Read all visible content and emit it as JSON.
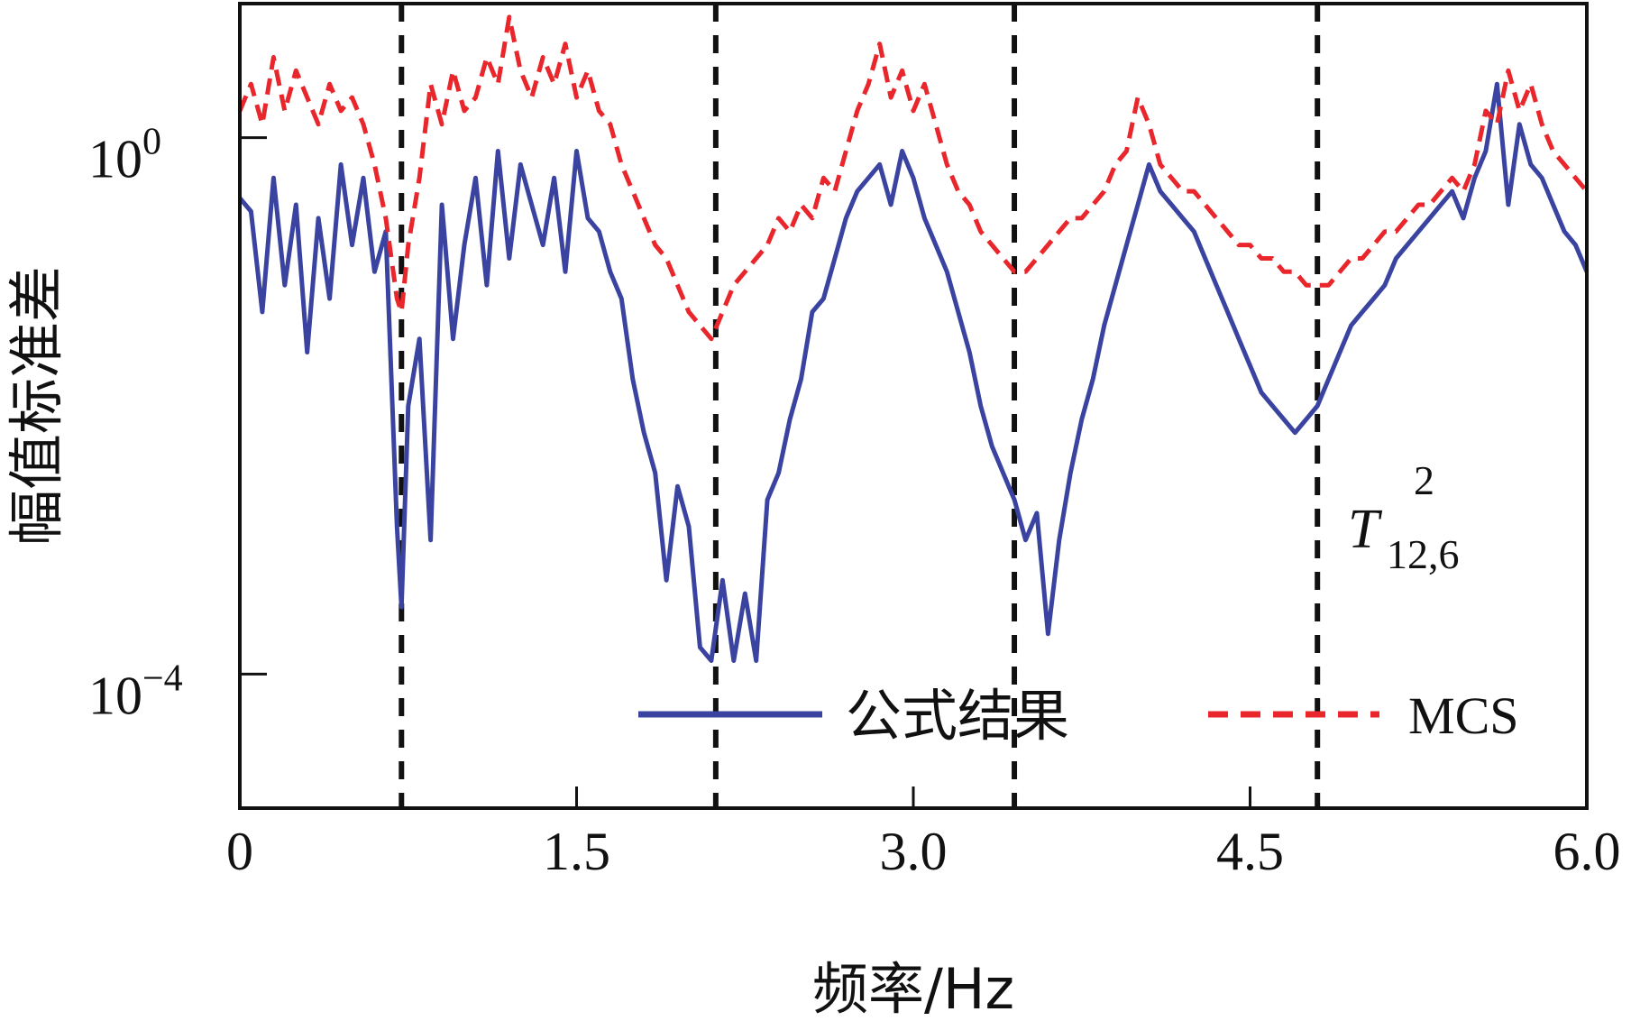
{
  "chart_data": {
    "type": "line",
    "title": "",
    "xlabel": "频率/Hz",
    "ylabel": "幅值标准差",
    "yscale": "log",
    "xlim": [
      0,
      6.0
    ],
    "ylim_exponent": [
      -5.0,
      1.0
    ],
    "x_ticks": [
      0,
      1.5,
      3.0,
      4.5,
      6.0
    ],
    "x_tick_labels": [
      "0",
      "1.5",
      "3.0",
      "4.5",
      "6.0"
    ],
    "y_ticks": [
      {
        "base": "10",
        "exp": "0",
        "value": 1
      },
      {
        "base": "10",
        "exp": "−4",
        "value": 0.0001
      }
    ],
    "annotation": {
      "main": "T",
      "sup": "2",
      "sub": "12,6"
    },
    "legend": {
      "position": "bottom-right"
    },
    "vertical_lines_x": [
      0.72,
      2.12,
      3.45,
      4.8
    ],
    "colors": {
      "formula": "#3a44a0",
      "mcs": "#e8262b",
      "vline": "#111111"
    },
    "series": [
      {
        "name": "公式结果",
        "style": "solid",
        "x": [
          0,
          0.05,
          0.1,
          0.15,
          0.2,
          0.25,
          0.3,
          0.35,
          0.4,
          0.45,
          0.5,
          0.55,
          0.6,
          0.65,
          0.7,
          0.72,
          0.75,
          0.8,
          0.85,
          0.9,
          0.95,
          1.0,
          1.05,
          1.1,
          1.15,
          1.2,
          1.25,
          1.3,
          1.35,
          1.4,
          1.45,
          1.5,
          1.55,
          1.6,
          1.65,
          1.7,
          1.75,
          1.8,
          1.85,
          1.9,
          1.95,
          2.0,
          2.05,
          2.1,
          2.15,
          2.2,
          2.25,
          2.3,
          2.35,
          2.4,
          2.45,
          2.5,
          2.55,
          2.6,
          2.65,
          2.7,
          2.75,
          2.8,
          2.85,
          2.9,
          2.95,
          3.0,
          3.05,
          3.1,
          3.15,
          3.2,
          3.25,
          3.3,
          3.35,
          3.4,
          3.45,
          3.5,
          3.55,
          3.6,
          3.65,
          3.7,
          3.75,
          3.8,
          3.85,
          3.9,
          3.95,
          4.0,
          4.05,
          4.1,
          4.15,
          4.2,
          4.25,
          4.3,
          4.35,
          4.4,
          4.45,
          4.5,
          4.55,
          4.6,
          4.65,
          4.7,
          4.75,
          4.8,
          4.85,
          4.9,
          4.95,
          5.0,
          5.05,
          5.1,
          5.15,
          5.2,
          5.25,
          5.3,
          5.35,
          5.4,
          5.45,
          5.5,
          5.55,
          5.6,
          5.65,
          5.7,
          5.75,
          5.8,
          5.85,
          5.9,
          5.95,
          6.0
        ],
        "log10_y": [
          -0.45,
          -0.55,
          -1.3,
          -0.3,
          -1.1,
          -0.5,
          -1.6,
          -0.6,
          -1.2,
          -0.2,
          -0.8,
          -0.3,
          -1.0,
          -0.7,
          -2.9,
          -3.5,
          -2.0,
          -1.5,
          -3.0,
          -0.5,
          -1.5,
          -0.8,
          -0.3,
          -1.1,
          -0.1,
          -0.9,
          -0.2,
          -0.5,
          -0.8,
          -0.3,
          -1.0,
          -0.1,
          -0.6,
          -0.7,
          -1.0,
          -1.2,
          -1.8,
          -2.2,
          -2.5,
          -3.3,
          -2.6,
          -2.9,
          -3.8,
          -3.9,
          -3.3,
          -3.9,
          -3.4,
          -3.9,
          -2.7,
          -2.5,
          -2.1,
          -1.8,
          -1.3,
          -1.2,
          -0.9,
          -0.6,
          -0.4,
          -0.3,
          -0.2,
          -0.5,
          -0.1,
          -0.3,
          -0.6,
          -0.8,
          -1.0,
          -1.3,
          -1.6,
          -2.0,
          -2.3,
          -2.5,
          -2.7,
          -3.0,
          -2.8,
          -3.7,
          -3.0,
          -2.5,
          -2.1,
          -1.8,
          -1.4,
          -1.1,
          -0.8,
          -0.5,
          -0.2,
          -0.4,
          -0.5,
          -0.6,
          -0.7,
          -0.9,
          -1.1,
          -1.3,
          -1.5,
          -1.7,
          -1.9,
          -2.0,
          -2.1,
          -2.2,
          -2.1,
          -2.0,
          -1.8,
          -1.6,
          -1.4,
          -1.3,
          -1.2,
          -1.1,
          -0.9,
          -0.8,
          -0.7,
          -0.6,
          -0.5,
          -0.4,
          -0.6,
          -0.3,
          -0.1,
          0.4,
          -0.5,
          0.1,
          -0.2,
          -0.3,
          -0.5,
          -0.7,
          -0.8,
          -1.0
        ]
      },
      {
        "name": "MCS",
        "style": "dashed",
        "x": [
          0,
          0.05,
          0.1,
          0.15,
          0.2,
          0.25,
          0.3,
          0.35,
          0.4,
          0.45,
          0.5,
          0.55,
          0.6,
          0.65,
          0.7,
          0.72,
          0.75,
          0.8,
          0.85,
          0.9,
          0.95,
          1.0,
          1.05,
          1.1,
          1.15,
          1.2,
          1.25,
          1.3,
          1.35,
          1.4,
          1.45,
          1.5,
          1.55,
          1.6,
          1.65,
          1.7,
          1.75,
          1.8,
          1.85,
          1.9,
          1.95,
          2.0,
          2.05,
          2.1,
          2.15,
          2.2,
          2.25,
          2.3,
          2.35,
          2.4,
          2.45,
          2.5,
          2.55,
          2.6,
          2.65,
          2.7,
          2.75,
          2.8,
          2.85,
          2.9,
          2.95,
          3.0,
          3.05,
          3.1,
          3.15,
          3.2,
          3.25,
          3.3,
          3.35,
          3.4,
          3.45,
          3.5,
          3.55,
          3.6,
          3.65,
          3.7,
          3.75,
          3.8,
          3.85,
          3.9,
          3.95,
          4.0,
          4.05,
          4.1,
          4.15,
          4.2,
          4.25,
          4.3,
          4.35,
          4.4,
          4.45,
          4.5,
          4.55,
          4.6,
          4.65,
          4.7,
          4.75,
          4.8,
          4.85,
          4.9,
          4.95,
          5.0,
          5.05,
          5.1,
          5.15,
          5.2,
          5.25,
          5.3,
          5.35,
          5.4,
          5.45,
          5.5,
          5.55,
          5.6,
          5.65,
          5.7,
          5.75,
          5.8,
          5.85,
          5.9,
          5.95,
          6.0
        ],
        "log10_y": [
          0.2,
          0.4,
          0.1,
          0.6,
          0.2,
          0.5,
          0.3,
          0.1,
          0.4,
          0.2,
          0.3,
          0.1,
          -0.2,
          -0.6,
          -1.2,
          -1.3,
          -0.8,
          -0.3,
          0.4,
          0.1,
          0.5,
          0.2,
          0.3,
          0.6,
          0.4,
          0.9,
          0.5,
          0.3,
          0.6,
          0.4,
          0.7,
          0.3,
          0.5,
          0.2,
          0.1,
          -0.2,
          -0.4,
          -0.6,
          -0.8,
          -0.9,
          -1.1,
          -1.3,
          -1.4,
          -1.5,
          -1.3,
          -1.1,
          -1.0,
          -0.9,
          -0.8,
          -0.6,
          -0.7,
          -0.5,
          -0.6,
          -0.3,
          -0.4,
          -0.1,
          0.2,
          0.4,
          0.7,
          0.3,
          0.5,
          0.2,
          0.4,
          0.1,
          -0.2,
          -0.4,
          -0.5,
          -0.7,
          -0.8,
          -0.9,
          -1.0,
          -1.0,
          -0.9,
          -0.8,
          -0.7,
          -0.6,
          -0.6,
          -0.5,
          -0.4,
          -0.2,
          -0.1,
          0.3,
          0.1,
          -0.2,
          -0.3,
          -0.4,
          -0.4,
          -0.5,
          -0.6,
          -0.7,
          -0.8,
          -0.8,
          -0.9,
          -0.9,
          -1.0,
          -1.0,
          -1.1,
          -1.1,
          -1.1,
          -1.0,
          -0.9,
          -0.9,
          -0.8,
          -0.7,
          -0.7,
          -0.6,
          -0.5,
          -0.5,
          -0.4,
          -0.3,
          -0.4,
          -0.2,
          0.2,
          0.1,
          0.5,
          0.2,
          0.4,
          0.1,
          -0.1,
          -0.2,
          -0.3,
          -0.4
        ]
      }
    ]
  }
}
